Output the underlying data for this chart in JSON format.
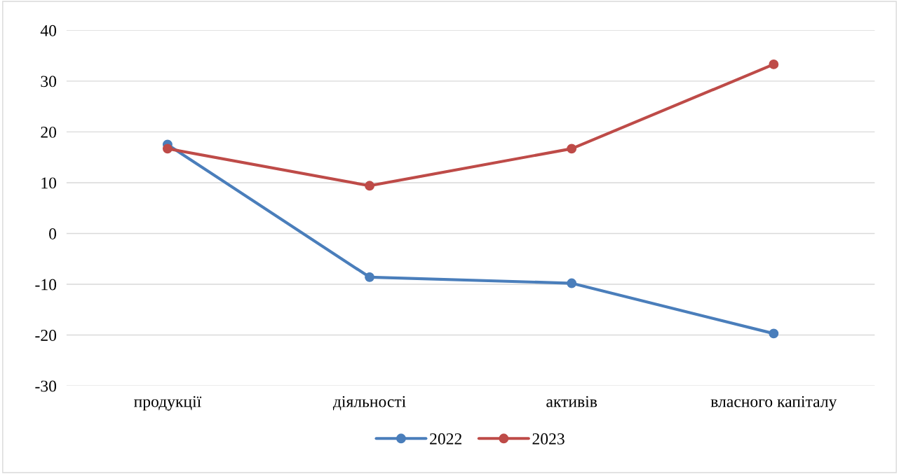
{
  "chart_data": {
    "type": "line",
    "categories": [
      "продукції",
      "діяльності",
      "активів",
      "власного капіталу"
    ],
    "series": [
      {
        "name": "2022",
        "color": "#4a7ebb",
        "values": [
          17.5,
          -8.6,
          -9.8,
          -19.7
        ]
      },
      {
        "name": "2023",
        "color": "#be4b48",
        "values": [
          16.7,
          9.4,
          16.7,
          33.3
        ]
      }
    ],
    "ylim": [
      -30,
      40
    ],
    "yticks": [
      -30,
      -20,
      -10,
      0,
      10,
      20,
      30,
      40
    ],
    "grid": "y",
    "legend": "bottom",
    "marker": "circle",
    "line_style": "solid"
  }
}
